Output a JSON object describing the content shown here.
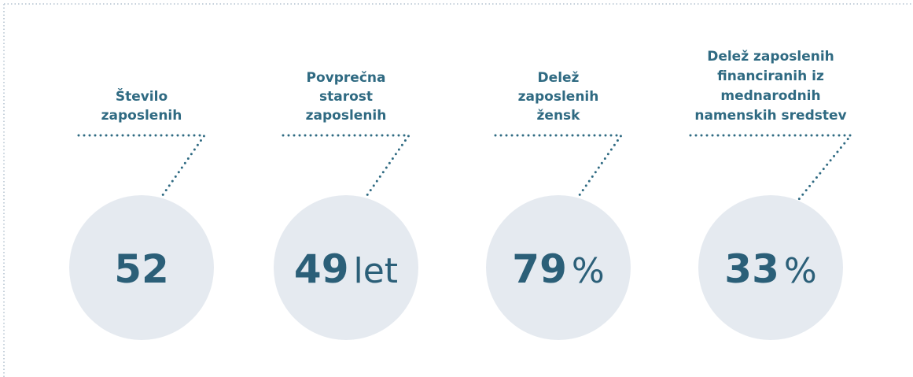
{
  "items": [
    {
      "label": [
        "Število",
        "zaposlenih"
      ],
      "value": 52
    },
    {
      "label": [
        "Povprečna",
        "starost",
        "zaposlenih"
      ],
      "value": 49,
      "unit": "let"
    },
    {
      "label": [
        "Delež",
        "zaposlenih",
        "žensk"
      ],
      "value": 79,
      "unit": "%"
    },
    {
      "label": [
        "Delež zaposlenih",
        "financiranih iz",
        "mednarodnih",
        "namenskih sredstev"
      ],
      "value": 33,
      "unit": "%"
    }
  ]
}
